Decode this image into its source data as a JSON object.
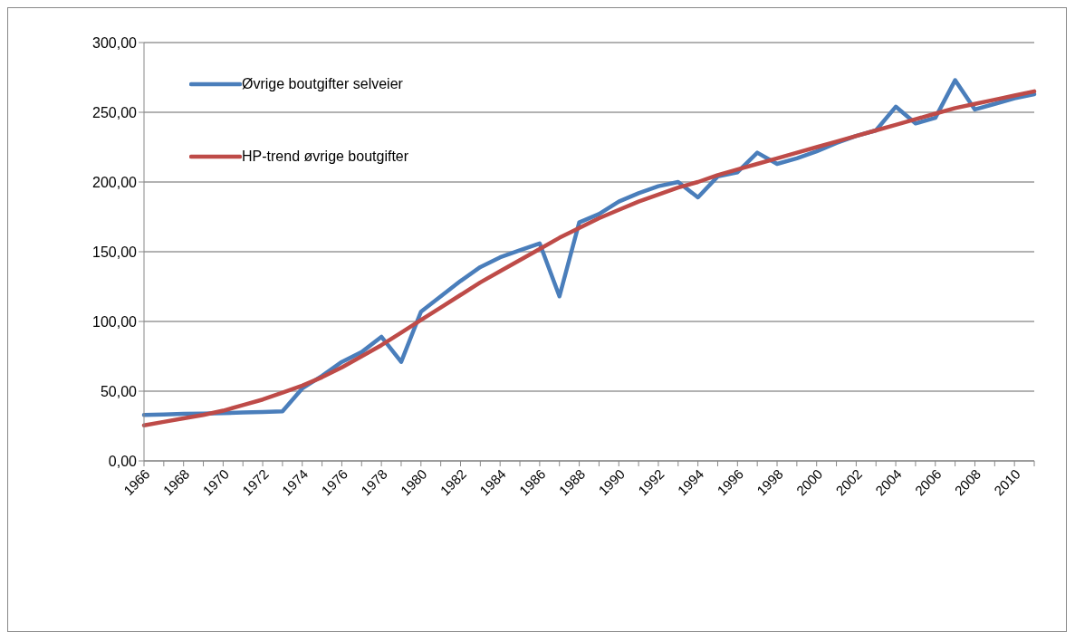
{
  "chart_data": {
    "type": "line",
    "categories": [
      "1966",
      null,
      "1968",
      null,
      "1970",
      null,
      "1972",
      null,
      "1974",
      null,
      "1976",
      null,
      "1978",
      null,
      "1980",
      null,
      "1982",
      null,
      "1984",
      null,
      "1986",
      null,
      "1988",
      null,
      "1990",
      null,
      "1992",
      null,
      "1994",
      null,
      "1996",
      null,
      "1998",
      null,
      "2000",
      null,
      "2002",
      null,
      "2004",
      null,
      "2006",
      null,
      "2008",
      null,
      "2010",
      null
    ],
    "series": [
      {
        "name": "Øvrige boutgifter selveier",
        "color": "#4a7ebb",
        "values": [
          33,
          33.3,
          33.7,
          34,
          34.3,
          34.7,
          35,
          35.5,
          52,
          61,
          71,
          78,
          89,
          71,
          107,
          118,
          129,
          139,
          146,
          151,
          156,
          118,
          171,
          177,
          186,
          192,
          197,
          200,
          189,
          204,
          207,
          221,
          213,
          217,
          222,
          228,
          233,
          237,
          254,
          242,
          246,
          273,
          252,
          256,
          260,
          263
        ]
      },
      {
        "name": "HP-trend øvrige boutgifter",
        "color": "#be4b48",
        "values": [
          25.5,
          28,
          30.5,
          33,
          36,
          40,
          44,
          49,
          54,
          60,
          67,
          75,
          83,
          92,
          101,
          110,
          119,
          128,
          136,
          144,
          152,
          160,
          167,
          174,
          180,
          186,
          191,
          196,
          200,
          205,
          209,
          213,
          217,
          221,
          225,
          229,
          233,
          237,
          241,
          245,
          249,
          253,
          256,
          259,
          262,
          265
        ]
      }
    ],
    "ylim": [
      0,
      300
    ],
    "yticks": [
      {
        "value": 0,
        "label": "0,00"
      },
      {
        "value": 50,
        "label": "50,00"
      },
      {
        "value": 100,
        "label": "100,00"
      },
      {
        "value": 150,
        "label": "150,00"
      },
      {
        "value": 200,
        "label": "200,00"
      },
      {
        "value": 250,
        "label": "250,00"
      },
      {
        "value": 300,
        "label": "300,00"
      }
    ],
    "grid": "y",
    "legend": "top left",
    "marker": "none",
    "line_style": "solid"
  }
}
